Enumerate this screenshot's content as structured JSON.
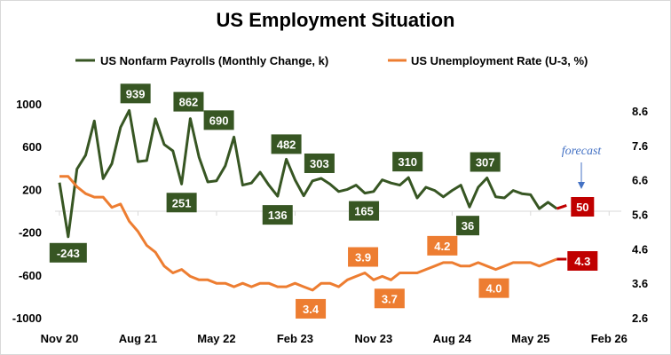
{
  "chart_data": {
    "type": "line",
    "title": "US Employment Situation",
    "x_tick_labels": [
      "Nov 20",
      "Aug 21",
      "May 22",
      "Feb 23",
      "Nov 23",
      "Aug 24",
      "May 25",
      "Feb 26"
    ],
    "left_axis": {
      "ticks": [
        "1000",
        "600",
        "200",
        "-200",
        "-600",
        "-1000"
      ],
      "ylim": [
        -1000,
        1000
      ]
    },
    "right_axis": {
      "ticks": [
        "8.6",
        "7.6",
        "6.6",
        "5.6",
        "4.6",
        "3.6",
        "2.6"
      ],
      "ylim": [
        2.6,
        8.6
      ]
    },
    "grid": false,
    "legend_position": "top",
    "start_month": "Nov 20",
    "series": [
      {
        "name": "US Nonfarm Payrolls (Monthly Change, k)",
        "axis": "left",
        "color": "#375623",
        "values": [
          264,
          -243,
          390,
          520,
          840,
          300,
          440,
          780,
          939,
          460,
          470,
          860,
          620,
          560,
          251,
          862,
          500,
          270,
          280,
          420,
          690,
          240,
          260,
          360,
          240,
          136,
          482,
          290,
          140,
          280,
          303,
          250,
          180,
          200,
          240,
          165,
          180,
          290,
          260,
          240,
          310,
          120,
          220,
          190,
          130,
          190,
          240,
          36,
          220,
          307,
          130,
          120,
          190,
          160,
          150,
          20,
          80,
          20
        ],
        "forecast": 50,
        "labels": [
          {
            "month": 1,
            "text": "-243"
          },
          {
            "month": 8,
            "text": "939"
          },
          {
            "month": 14,
            "text": "251"
          },
          {
            "month": 15,
            "text": "862"
          },
          {
            "month": 20,
            "text": "690"
          },
          {
            "month": 25,
            "text": "136"
          },
          {
            "month": 26,
            "text": "482"
          },
          {
            "month": 30,
            "text": "303"
          },
          {
            "month": 35,
            "text": "165"
          },
          {
            "month": 40,
            "text": "310"
          },
          {
            "month": 47,
            "text": "36"
          },
          {
            "month": 49,
            "text": "307"
          }
        ],
        "forecast_label": "50"
      },
      {
        "name": "US Unemployment Rate (U-3, %)",
        "axis": "right",
        "color": "#ED7D31",
        "values": [
          6.7,
          6.7,
          6.4,
          6.2,
          6.1,
          6.1,
          5.8,
          5.9,
          5.4,
          5.1,
          4.7,
          4.5,
          4.1,
          3.9,
          4.0,
          3.8,
          3.7,
          3.7,
          3.6,
          3.6,
          3.5,
          3.6,
          3.5,
          3.6,
          3.6,
          3.5,
          3.5,
          3.6,
          3.5,
          3.4,
          3.6,
          3.6,
          3.5,
          3.7,
          3.8,
          3.9,
          3.7,
          3.8,
          3.7,
          3.9,
          3.9,
          3.9,
          4.0,
          4.1,
          4.2,
          4.2,
          4.1,
          4.1,
          4.2,
          4.1,
          4.0,
          4.1,
          4.2,
          4.2,
          4.2,
          4.1,
          4.2,
          4.3
        ],
        "forecast": 4.3,
        "labels": [
          {
            "month": 29,
            "text": "3.4"
          },
          {
            "month": 35,
            "text": "3.9"
          },
          {
            "month": 36,
            "text": "3.7"
          },
          {
            "month": 45,
            "text": "4.2"
          },
          {
            "month": 50,
            "text": "4.0"
          }
        ],
        "forecast_label": "4.3"
      }
    ],
    "forecast_color": "#C00000",
    "annotation": {
      "text": "forecast",
      "color": "#4472C4"
    }
  }
}
